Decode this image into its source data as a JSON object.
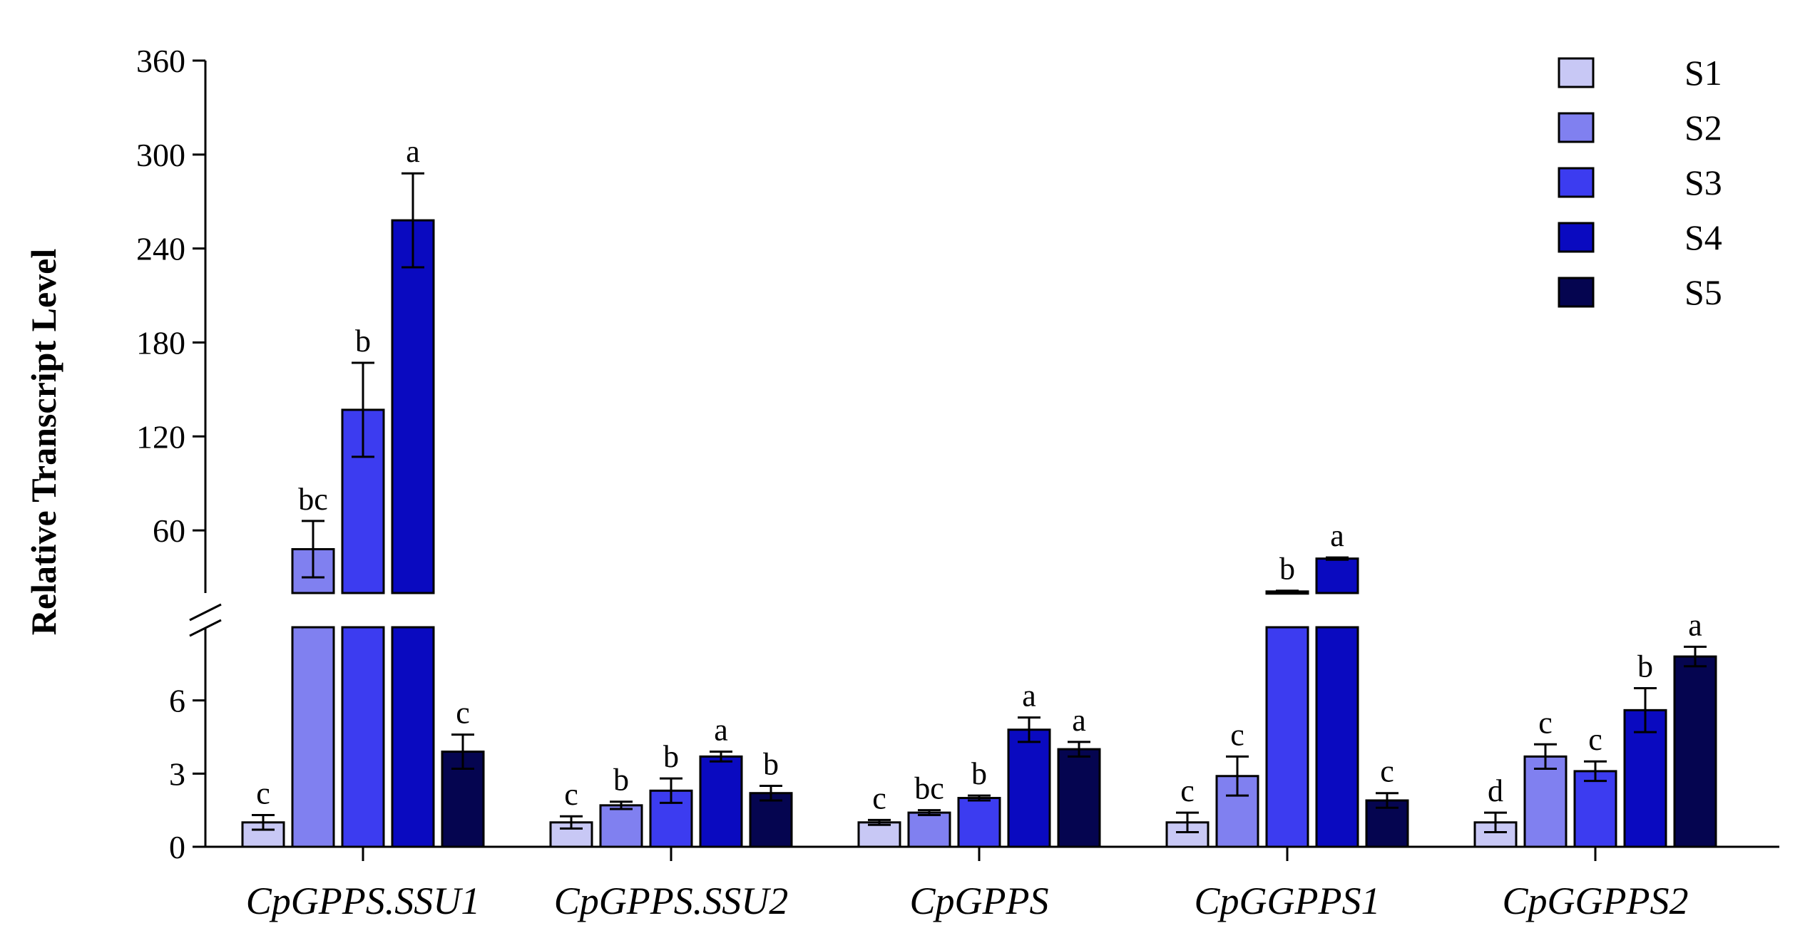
{
  "chart_data": {
    "type": "bar",
    "title": "",
    "xlabel": "",
    "ylabel": "Relative Transcript Level",
    "axis_break": {
      "lower_range": [
        0,
        9
      ],
      "upper_range": [
        20,
        360
      ],
      "lower_ticks": [
        "0",
        "3",
        "6"
      ],
      "upper_ticks": [
        "60",
        "120",
        "180",
        "240",
        "300",
        "360"
      ]
    },
    "categories": [
      "CpGPPS.SSU1",
      "CpGPPS.SSU2",
      "CpGPPS",
      "CpGGPPS1",
      "CpGGPPS2"
    ],
    "legend_position": "top-right",
    "series": [
      {
        "name": "S1",
        "color": "#c8c8f5",
        "values": [
          1.0,
          1.0,
          1.0,
          1.0,
          1.0
        ],
        "errors": [
          0.3,
          0.25,
          0.1,
          0.4,
          0.4
        ],
        "labels": [
          "c",
          "c",
          "c",
          "c",
          "d"
        ]
      },
      {
        "name": "S2",
        "color": "#8080f0",
        "values": [
          48,
          1.7,
          1.4,
          2.9,
          3.7
        ],
        "errors": [
          18,
          0.15,
          0.1,
          0.8,
          0.5
        ],
        "labels": [
          "bc",
          "b",
          "bc",
          "c",
          "c"
        ]
      },
      {
        "name": "S3",
        "color": "#3c3cf0",
        "values": [
          137,
          2.3,
          2.0,
          21,
          3.1
        ],
        "errors": [
          30,
          0.5,
          0.1,
          0.5,
          0.4
        ],
        "labels": [
          "b",
          "b",
          "b",
          "b",
          "c"
        ]
      },
      {
        "name": "S4",
        "color": "#0a0ac0",
        "values": [
          258,
          3.7,
          4.8,
          42,
          5.6
        ],
        "errors": [
          30,
          0.2,
          0.5,
          0.7,
          0.9
        ],
        "labels": [
          "a",
          "a",
          "a",
          "a",
          "b"
        ]
      },
      {
        "name": "S5",
        "color": "#050550",
        "values": [
          3.9,
          2.2,
          4.0,
          1.9,
          7.8
        ],
        "errors": [
          0.7,
          0.3,
          0.3,
          0.3,
          0.4
        ],
        "labels": [
          "c",
          "b",
          "a",
          "c",
          "a"
        ]
      }
    ]
  }
}
